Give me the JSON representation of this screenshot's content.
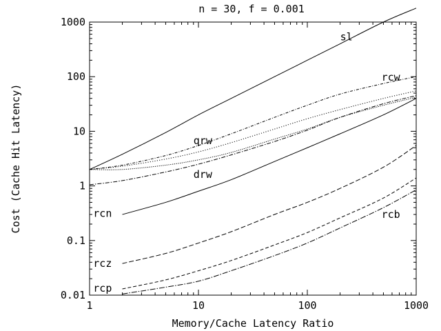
{
  "chart_data": {
    "type": "line",
    "title": "n = 30, f = 0.001",
    "xlabel": "Memory/Cache Latency Ratio",
    "ylabel": "Cost (Cache Hit Latency)",
    "xscale": "log",
    "yscale": "log",
    "xlim": [
      1,
      1000
    ],
    "ylim": [
      0.01,
      1000
    ],
    "grid": false,
    "xticks": [
      {
        "value": 1,
        "label": "1"
      },
      {
        "value": 10,
        "label": "10"
      },
      {
        "value": 100,
        "label": "100"
      },
      {
        "value": 1000,
        "label": "1000"
      }
    ],
    "yticks": [
      {
        "value": 0.01,
        "label": "0.01"
      },
      {
        "value": 0.1,
        "label": "0.1"
      },
      {
        "value": 1,
        "label": "1"
      },
      {
        "value": 10,
        "label": "10"
      },
      {
        "value": 100,
        "label": "100"
      },
      {
        "value": 1000,
        "label": "1000"
      }
    ],
    "series": [
      {
        "name": "sl",
        "dash": "solid",
        "label_at": [
          200,
          460
        ],
        "points": [
          [
            1,
            2.0
          ],
          [
            2,
            3.8
          ],
          [
            5,
            9.5
          ],
          [
            10,
            20
          ],
          [
            20,
            40
          ],
          [
            50,
            100
          ],
          [
            100,
            200
          ],
          [
            200,
            400
          ],
          [
            500,
            1000
          ],
          [
            1000,
            1800
          ]
        ]
      },
      {
        "name": "rcw",
        "dash": "dotdash",
        "label_at": [
          480,
          85
        ],
        "points": [
          [
            1,
            2.0
          ],
          [
            2,
            2.4
          ],
          [
            5,
            3.6
          ],
          [
            10,
            5.5
          ],
          [
            20,
            9.0
          ],
          [
            50,
            18
          ],
          [
            100,
            30
          ],
          [
            200,
            48
          ],
          [
            500,
            75
          ],
          [
            1000,
            100
          ]
        ]
      },
      {
        "name": "qrw",
        "dash": "dotted",
        "label_at": [
          9.0,
          5.8
        ],
        "points": [
          [
            1,
            2.0
          ],
          [
            2,
            2.3
          ],
          [
            5,
            3.1
          ],
          [
            10,
            4.2
          ],
          [
            20,
            6.2
          ],
          [
            50,
            11
          ],
          [
            100,
            17
          ],
          [
            200,
            25
          ],
          [
            500,
            40
          ],
          [
            1000,
            55
          ]
        ]
      },
      {
        "name": "drw",
        "dash": "dotted2",
        "label_at": [
          9.0,
          1.4
        ],
        "points": [
          [
            1,
            2.0
          ],
          [
            2,
            2.0
          ],
          [
            5,
            2.4
          ],
          [
            10,
            3.0
          ],
          [
            20,
            4.1
          ],
          [
            50,
            7.2
          ],
          [
            100,
            11
          ],
          [
            200,
            18
          ],
          [
            500,
            30
          ],
          [
            1000,
            42
          ]
        ]
      },
      {
        "name": "rcn",
        "dash": "solid",
        "label_at": [
          1.08,
          0.27
        ],
        "points": [
          [
            2,
            0.3
          ],
          [
            5,
            0.5
          ],
          [
            10,
            0.8
          ],
          [
            20,
            1.3
          ],
          [
            50,
            2.8
          ],
          [
            100,
            5.0
          ],
          [
            200,
            9.0
          ],
          [
            500,
            20
          ],
          [
            1000,
            40
          ]
        ]
      },
      {
        "name": "rcb",
        "dash": "dashdot",
        "label_at": [
          480,
          0.26
        ],
        "points": [
          [
            1,
            1.05
          ],
          [
            2,
            1.25
          ],
          [
            5,
            1.8
          ],
          [
            10,
            2.5
          ],
          [
            20,
            3.7
          ],
          [
            50,
            6.5
          ],
          [
            100,
            10.5
          ],
          [
            200,
            18
          ],
          [
            500,
            32
          ],
          [
            1000,
            45
          ]
        ]
      },
      {
        "name": "rcz",
        "dash": "longdash",
        "label_at": [
          1.08,
          0.033
        ],
        "points": [
          [
            2,
            0.038
          ],
          [
            5,
            0.058
          ],
          [
            10,
            0.09
          ],
          [
            20,
            0.145
          ],
          [
            50,
            0.3
          ],
          [
            100,
            0.5
          ],
          [
            200,
            0.9
          ],
          [
            500,
            2.2
          ],
          [
            1000,
            5.5
          ]
        ]
      },
      {
        "name": "rcp",
        "dash": "dashed",
        "label_at": [
          1.08,
          0.0115
        ],
        "points": [
          [
            2,
            0.013
          ],
          [
            5,
            0.019
          ],
          [
            10,
            0.028
          ],
          [
            20,
            0.043
          ],
          [
            50,
            0.083
          ],
          [
            100,
            0.14
          ],
          [
            200,
            0.26
          ],
          [
            500,
            0.6
          ],
          [
            1000,
            1.4
          ]
        ]
      },
      {
        "name": "",
        "dash": "dashdot2",
        "label_at": null,
        "points": [
          [
            2,
            0.0105
          ],
          [
            5,
            0.014
          ],
          [
            10,
            0.018
          ],
          [
            20,
            0.028
          ],
          [
            50,
            0.053
          ],
          [
            100,
            0.09
          ],
          [
            200,
            0.17
          ],
          [
            500,
            0.4
          ],
          [
            1000,
            0.85
          ]
        ]
      }
    ]
  }
}
